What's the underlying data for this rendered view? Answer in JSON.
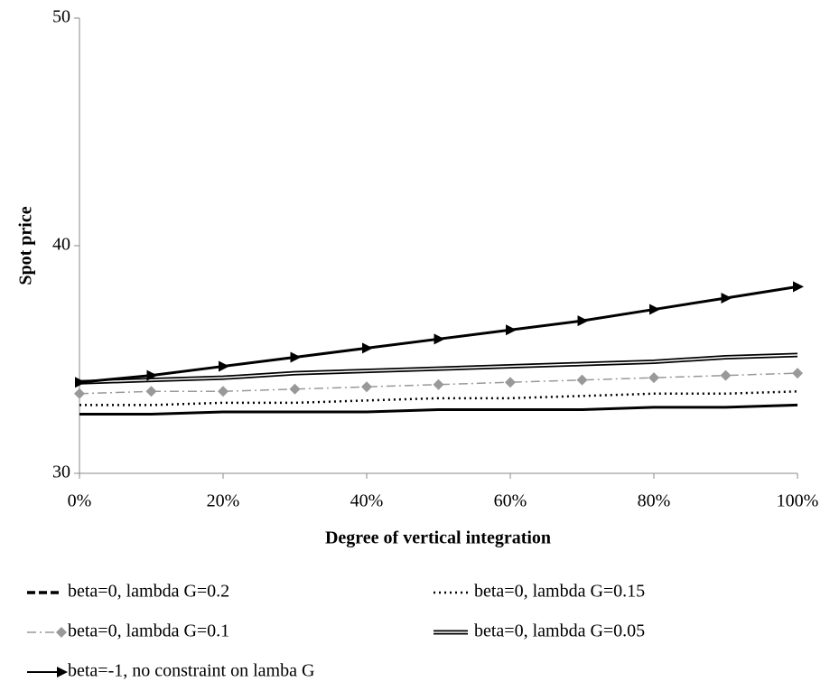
{
  "chart_data": {
    "type": "line",
    "x_label": "Degree of vertical integration",
    "y_label": "Spot price",
    "x": [
      0,
      10,
      20,
      30,
      40,
      50,
      60,
      70,
      80,
      90,
      100
    ],
    "xlim": [
      0,
      100
    ],
    "xticks": [
      {
        "value": 0,
        "label": "0%"
      },
      {
        "value": 20,
        "label": "20%"
      },
      {
        "value": 40,
        "label": "40%"
      },
      {
        "value": 60,
        "label": "60%"
      },
      {
        "value": 80,
        "label": "80%"
      },
      {
        "value": 100,
        "label": "100%"
      }
    ],
    "ylim": [
      30,
      50
    ],
    "yticks": [
      30,
      40,
      50
    ],
    "grid": false,
    "legend": "bottom",
    "series": [
      {
        "name": "beta=0, lambda G=0.2",
        "color": "#000000",
        "line_style": "solid",
        "legend_style": "dashed",
        "values": [
          32.6,
          32.6,
          32.7,
          32.7,
          32.7,
          32.8,
          32.8,
          32.8,
          32.9,
          32.9,
          33.0
        ]
      },
      {
        "name": "beta=0, lambda G=0.15",
        "color": "#000000",
        "line_style": "dotted",
        "values": [
          33.0,
          33.0,
          33.1,
          33.1,
          33.2,
          33.3,
          33.3,
          33.4,
          33.5,
          33.5,
          33.6
        ]
      },
      {
        "name": "beta=0, lambda G=0.1",
        "color": "#999999",
        "line_style": "dash-dot",
        "marker": "diamond",
        "values": [
          33.5,
          33.6,
          33.6,
          33.7,
          33.8,
          33.9,
          34.0,
          34.1,
          34.2,
          34.3,
          34.4
        ]
      },
      {
        "name": "beta=0, lambda G=0.05",
        "color": "#000000",
        "line_style": "double",
        "values": [
          34.0,
          34.1,
          34.2,
          34.4,
          34.5,
          34.6,
          34.7,
          34.8,
          34.9,
          35.1,
          35.2
        ]
      },
      {
        "name": "beta=-1, no constraint on lamba G",
        "color": "#000000",
        "line_style": "solid",
        "marker": "triangle",
        "values": [
          34.0,
          34.3,
          34.7,
          35.1,
          35.5,
          35.9,
          36.3,
          36.7,
          37.2,
          37.7,
          38.2
        ]
      }
    ]
  }
}
